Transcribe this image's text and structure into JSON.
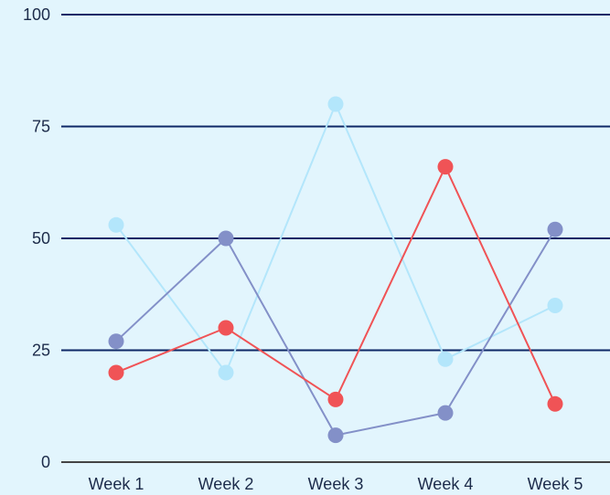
{
  "chart_data": {
    "type": "line",
    "title": "",
    "xlabel": "",
    "ylabel": "",
    "categories": [
      "Week 1",
      "Week 2",
      "Week 3",
      "Week 4",
      "Week 5"
    ],
    "ylim": [
      0,
      100
    ],
    "yticks": [
      "0",
      "25",
      "50",
      "75",
      "100"
    ],
    "grid": true,
    "legend": "none",
    "background": "#e2f5fd",
    "gridline_color": "#0d2866",
    "series": [
      {
        "color": "#b3e6fb",
        "values": [
          53,
          20,
          80,
          23,
          35
        ]
      },
      {
        "color": "#8390c8",
        "values": [
          27,
          50,
          6,
          11,
          52
        ]
      },
      {
        "color": "#f05356",
        "values": [
          20,
          30,
          14,
          66,
          13
        ]
      }
    ]
  }
}
